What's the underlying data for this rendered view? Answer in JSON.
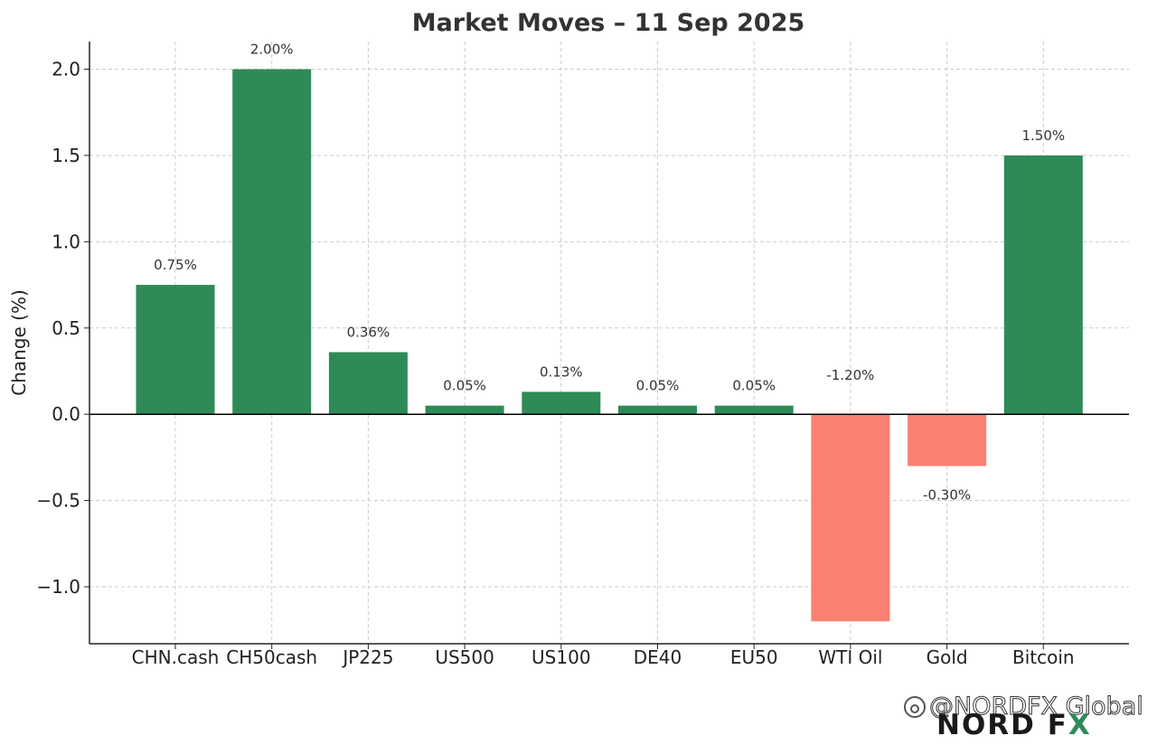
{
  "chart_data": {
    "type": "bar",
    "title": "Market Moves – 11 Sep 2025",
    "xlabel": "",
    "ylabel": "Change (%)",
    "ylim": [
      -1.33,
      2.16
    ],
    "yticks": [
      -1.0,
      -0.5,
      0.0,
      0.5,
      1.0,
      1.5,
      2.0
    ],
    "ytick_labels": [
      "−1.0",
      "−0.5",
      "0.0",
      "0.5",
      "1.0",
      "1.5",
      "2.0"
    ],
    "grid": true,
    "categories": [
      "CHN.cash",
      "CH50cash",
      "JP225",
      "US500",
      "US100",
      "DE40",
      "EU50",
      "WTI Oil",
      "Gold",
      "Bitcoin"
    ],
    "values": [
      0.75,
      2.0,
      0.36,
      0.05,
      0.13,
      0.05,
      0.05,
      -1.2,
      -0.3,
      1.5
    ],
    "data_labels": [
      "0.75%",
      "2.00%",
      "0.36%",
      "0.05%",
      "0.13%",
      "0.05%",
      "0.05%",
      "-1.20%",
      "-0.30%",
      "1.50%"
    ],
    "colors": {
      "positive": "#2e8b57",
      "negative": "#fa8072",
      "axis": "#222222",
      "grid": "#cccccc"
    }
  },
  "watermark": {
    "handle": "@NORDFX Global",
    "brand": "NORD FX"
  }
}
